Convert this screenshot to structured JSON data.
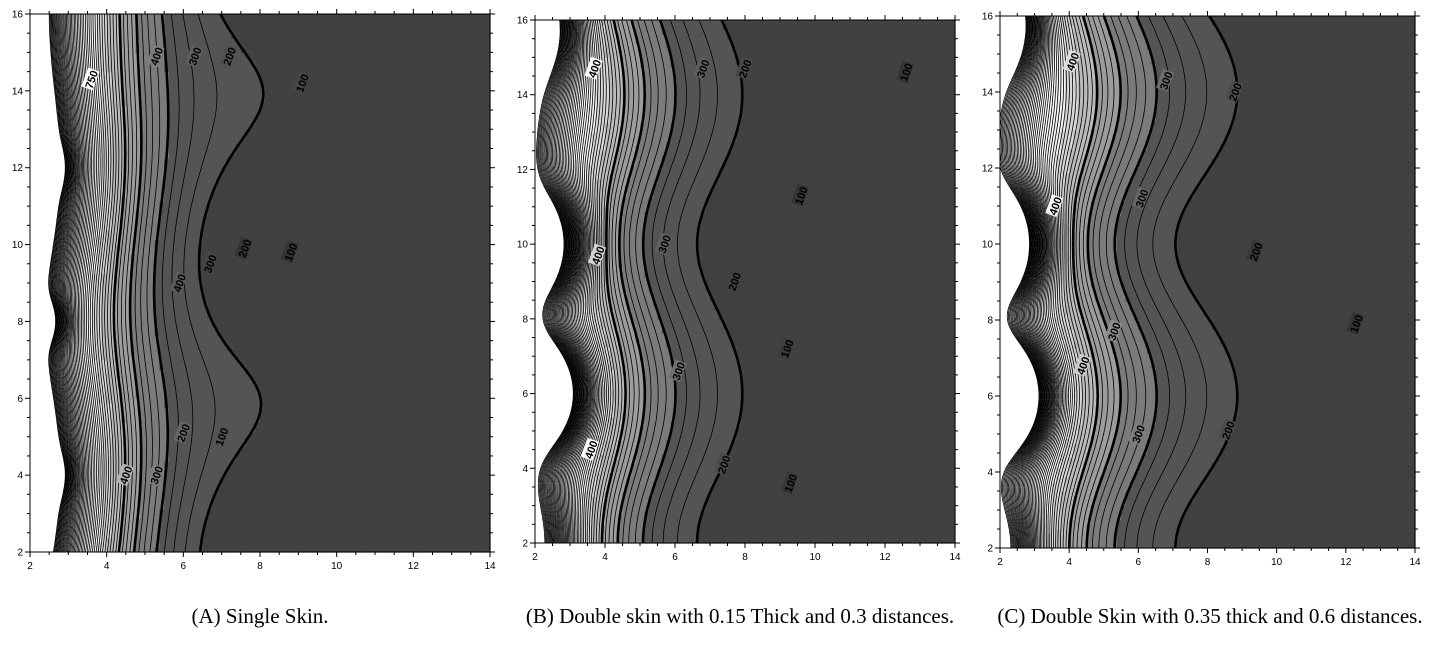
{
  "chart_data": [
    {
      "type": "contour",
      "caption": "(A) Single Skin.",
      "x_ticks": [
        "2",
        "4",
        "6",
        "8",
        "10",
        "12",
        "14"
      ],
      "y_ticks": [
        "2",
        "4",
        "6",
        "8",
        "10",
        "12",
        "14",
        "16"
      ],
      "xlim": [
        2,
        14
      ],
      "ylim": [
        2,
        16
      ],
      "contour_labels": [
        {
          "text": "750",
          "x": 3.6,
          "y": 14.3
        },
        {
          "text": "400",
          "x": 5.3,
          "y": 14.9
        },
        {
          "text": "300",
          "x": 6.3,
          "y": 14.9
        },
        {
          "text": "200",
          "x": 7.2,
          "y": 14.9
        },
        {
          "text": "100",
          "x": 9.1,
          "y": 14.2
        },
        {
          "text": "400",
          "x": 5.9,
          "y": 9.0
        },
        {
          "text": "300",
          "x": 6.7,
          "y": 9.5
        },
        {
          "text": "200",
          "x": 7.6,
          "y": 9.9
        },
        {
          "text": "100",
          "x": 8.8,
          "y": 9.8
        },
        {
          "text": "400",
          "x": 4.5,
          "y": 4.0
        },
        {
          "text": "300",
          "x": 5.3,
          "y": 4.0
        },
        {
          "text": "200",
          "x": 6.0,
          "y": 5.1
        },
        {
          "text": "100",
          "x": 7.0,
          "y": 5.0
        }
      ]
    },
    {
      "type": "contour",
      "caption": "(B) Double skin with 0.15 Thick and 0.3 distances.",
      "x_ticks": [
        "2",
        "4",
        "6",
        "8",
        "10",
        "12",
        "14"
      ],
      "y_ticks": [
        "2",
        "4",
        "6",
        "8",
        "10",
        "12",
        "14",
        "16"
      ],
      "xlim": [
        2,
        14
      ],
      "ylim": [
        2,
        16
      ],
      "contour_labels": [
        {
          "text": "400",
          "x": 3.7,
          "y": 14.7
        },
        {
          "text": "300",
          "x": 6.8,
          "y": 14.7
        },
        {
          "text": "200",
          "x": 8.0,
          "y": 14.7
        },
        {
          "text": "100",
          "x": 12.6,
          "y": 14.6
        },
        {
          "text": "400",
          "x": 3.8,
          "y": 9.7
        },
        {
          "text": "300",
          "x": 5.7,
          "y": 10.0
        },
        {
          "text": "200",
          "x": 7.7,
          "y": 9.0
        },
        {
          "text": "100",
          "x": 9.6,
          "y": 11.3
        },
        {
          "text": "300",
          "x": 6.1,
          "y": 6.6
        },
        {
          "text": "100",
          "x": 9.2,
          "y": 7.2
        },
        {
          "text": "400",
          "x": 3.6,
          "y": 4.5
        },
        {
          "text": "200",
          "x": 7.4,
          "y": 4.1
        },
        {
          "text": "100",
          "x": 9.3,
          "y": 3.6
        }
      ]
    },
    {
      "type": "contour",
      "caption": "(C) Double Skin with 0.35 thick and 0.6 distances.",
      "x_ticks": [
        "2",
        "4",
        "6",
        "8",
        "10",
        "12",
        "14"
      ],
      "y_ticks": [
        "2",
        "4",
        "6",
        "8",
        "10",
        "12",
        "14",
        "16"
      ],
      "xlim": [
        2,
        14
      ],
      "ylim": [
        2,
        16
      ],
      "contour_labels": [
        {
          "text": "400",
          "x": 4.1,
          "y": 14.8
        },
        {
          "text": "300",
          "x": 6.8,
          "y": 14.3
        },
        {
          "text": "200",
          "x": 8.8,
          "y": 14.0
        },
        {
          "text": "300",
          "x": 6.1,
          "y": 11.2
        },
        {
          "text": "400",
          "x": 3.6,
          "y": 11.0
        },
        {
          "text": "200",
          "x": 9.4,
          "y": 9.8
        },
        {
          "text": "300",
          "x": 5.3,
          "y": 7.7
        },
        {
          "text": "100",
          "x": 12.3,
          "y": 7.9
        },
        {
          "text": "400",
          "x": 4.4,
          "y": 6.8
        },
        {
          "text": "300",
          "x": 6.0,
          "y": 5.0
        },
        {
          "text": "200",
          "x": 8.6,
          "y": 5.1
        }
      ]
    }
  ]
}
